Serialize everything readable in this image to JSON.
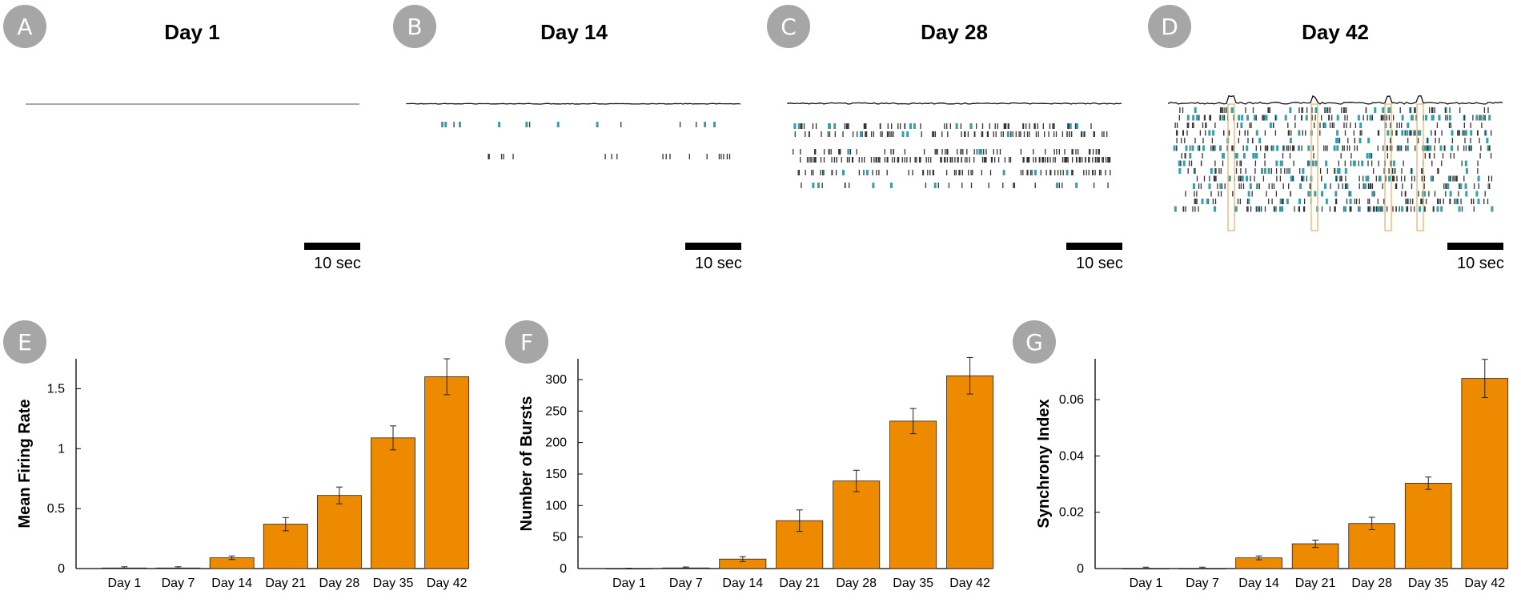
{
  "raster_panels": [
    {
      "badge": "A",
      "title": "Day 1",
      "scale_label": "10 sec",
      "activity": 0
    },
    {
      "badge": "B",
      "title": "Day 14",
      "scale_label": "10 sec",
      "activity": 1
    },
    {
      "badge": "C",
      "title": "Day 28",
      "scale_label": "10 sec",
      "activity": 2
    },
    {
      "badge": "D",
      "title": "Day 42",
      "scale_label": "10 sec",
      "activity": 3
    }
  ],
  "colors": {
    "bar": "#ee8a00",
    "badge": "#a6a6a6",
    "spike_teal": "#3a9da9",
    "spike_dark": "#333333",
    "highlight_box": "#e7b36a"
  },
  "chart_data": [
    {
      "badge": "E",
      "type": "bar",
      "ylabel": "Mean Firing Rate",
      "categories": [
        "Day 1",
        "Day 7",
        "Day 14",
        "Day 21",
        "Day 28",
        "Day 35",
        "Day 42"
      ],
      "values": [
        0.005,
        0.005,
        0.09,
        0.37,
        0.61,
        1.09,
        1.6
      ],
      "errors": [
        0.01,
        0.01,
        0.015,
        0.055,
        0.07,
        0.1,
        0.15
      ],
      "ylim": [
        0,
        1.75
      ],
      "yticks": [
        0,
        0.5,
        1,
        1.5
      ],
      "ytick_labels": [
        "0",
        "0.5",
        "1",
        "1.5"
      ]
    },
    {
      "badge": "F",
      "type": "bar",
      "ylabel": "Number of Bursts",
      "categories": [
        "Day 1",
        "Day 7",
        "Day 14",
        "Day 21",
        "Day 28",
        "Day 35",
        "Day 42"
      ],
      "values": [
        0,
        1,
        15,
        76,
        139,
        234,
        306
      ],
      "errors": [
        0.5,
        1.5,
        4,
        17,
        17,
        20,
        29
      ],
      "ylim": [
        0,
        333
      ],
      "yticks": [
        0,
        50,
        100,
        150,
        200,
        250,
        300
      ],
      "ytick_labels": [
        "0",
        "50",
        "100",
        "150",
        "200",
        "250",
        "300"
      ]
    },
    {
      "badge": "G",
      "type": "bar",
      "ylabel": "Synchrony Index",
      "categories": [
        "Day 1",
        "Day 7",
        "Day 14",
        "Day 21",
        "Day 28",
        "Day 35",
        "Day 42"
      ],
      "values": [
        0,
        0,
        0.0038,
        0.0088,
        0.016,
        0.0303,
        0.0675
      ],
      "errors": [
        0.0005,
        0.0005,
        0.0007,
        0.0013,
        0.0022,
        0.0022,
        0.0068
      ],
      "ylim": [
        0,
        0.0745
      ],
      "yticks": [
        0,
        0.02,
        0.04,
        0.06
      ],
      "ytick_labels": [
        "0",
        "0.02",
        "0.04",
        "0.06"
      ]
    }
  ]
}
